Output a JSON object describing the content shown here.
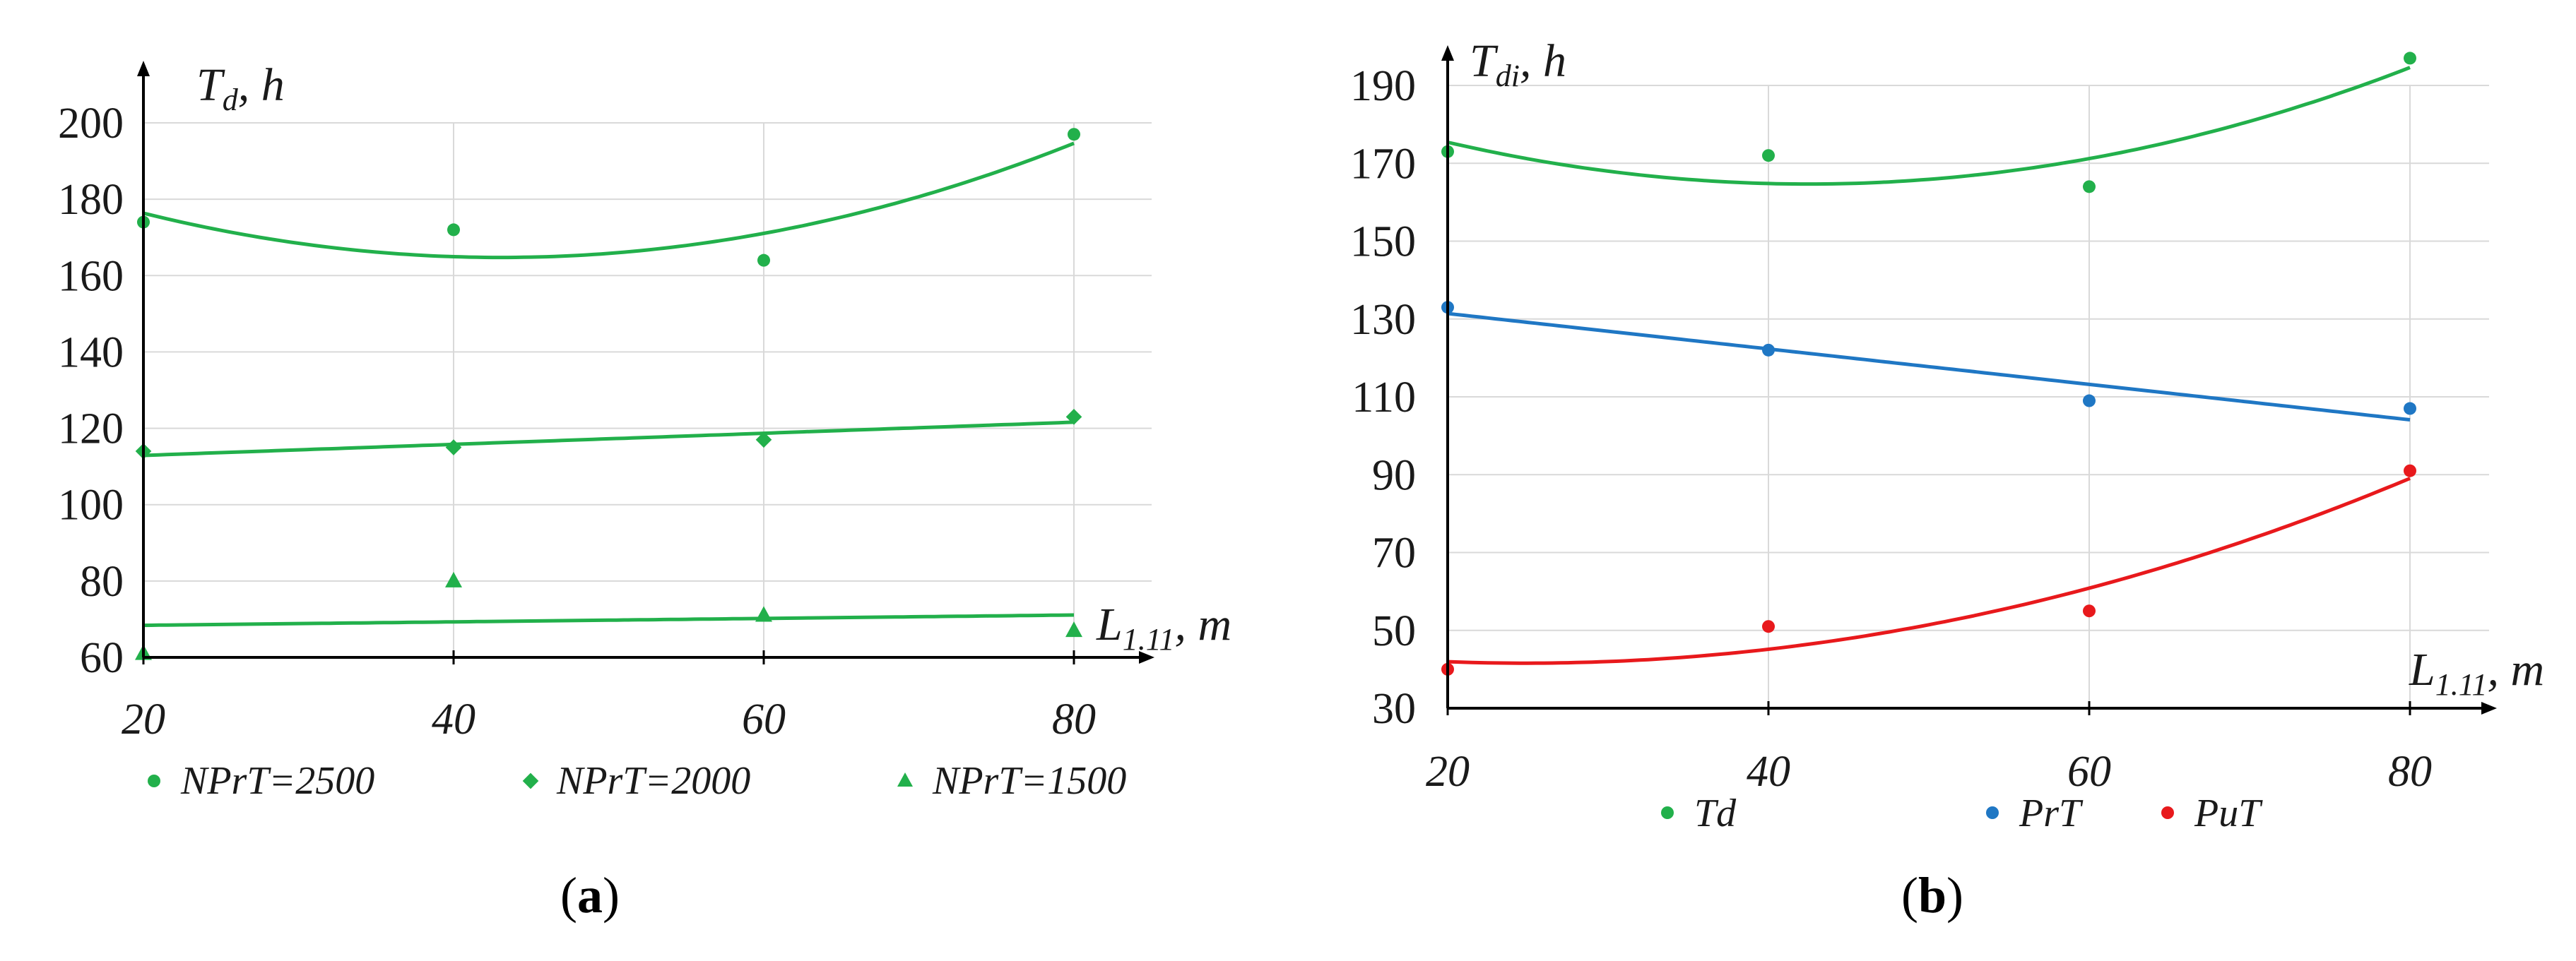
{
  "chart_data": [
    {
      "type": "scatter",
      "panel_label": "a",
      "ylabel_main": "T",
      "ylabel_sub": "d",
      "ylabel_unit": ", h",
      "xlabel_main": "L",
      "xlabel_sub": "1.11",
      "xlabel_unit": ", m",
      "xlim": [
        20,
        80
      ],
      "ylim": [
        60,
        200
      ],
      "x_ticks": [
        20,
        40,
        60,
        80
      ],
      "y_ticks": [
        60,
        80,
        100,
        120,
        140,
        160,
        180,
        200
      ],
      "x": [
        20,
        40,
        60,
        80
      ],
      "series": [
        {
          "name": "NPrT=2500",
          "marker": "circle",
          "values": [
            174,
            172,
            164,
            197
          ],
          "trend": "poly2"
        },
        {
          "name": "NPrT=2000",
          "marker": "diamond",
          "values": [
            114,
            115,
            117,
            123
          ],
          "trend": "linear"
        },
        {
          "name": "NPrT=1500",
          "marker": "triangle",
          "values": [
            61,
            80,
            71,
            67
          ],
          "trend": "linear"
        }
      ],
      "color": "#22b04b"
    },
    {
      "type": "scatter",
      "panel_label": "b",
      "ylabel_main": "T",
      "ylabel_sub": "di",
      "ylabel_unit": ", h",
      "xlabel_main": "L",
      "xlabel_sub": "1.11",
      "xlabel_unit": ", m",
      "xlim": [
        20,
        80
      ],
      "ylim": [
        30,
        190
      ],
      "x_ticks": [
        20,
        40,
        60,
        80
      ],
      "y_ticks": [
        30,
        50,
        70,
        90,
        110,
        130,
        150,
        170,
        190
      ],
      "x": [
        20,
        40,
        60,
        80
      ],
      "series": [
        {
          "name": "Td",
          "color": "#22b04b",
          "values": [
            173,
            172,
            164,
            197
          ],
          "trend": "poly2"
        },
        {
          "name": "PrT",
          "color": "#1f77c4",
          "values": [
            133,
            122,
            109,
            107
          ],
          "trend": "linear"
        },
        {
          "name": "PuT",
          "color": "#e8191c",
          "values": [
            40,
            51,
            55,
            91
          ],
          "trend": "poly2"
        }
      ]
    }
  ]
}
